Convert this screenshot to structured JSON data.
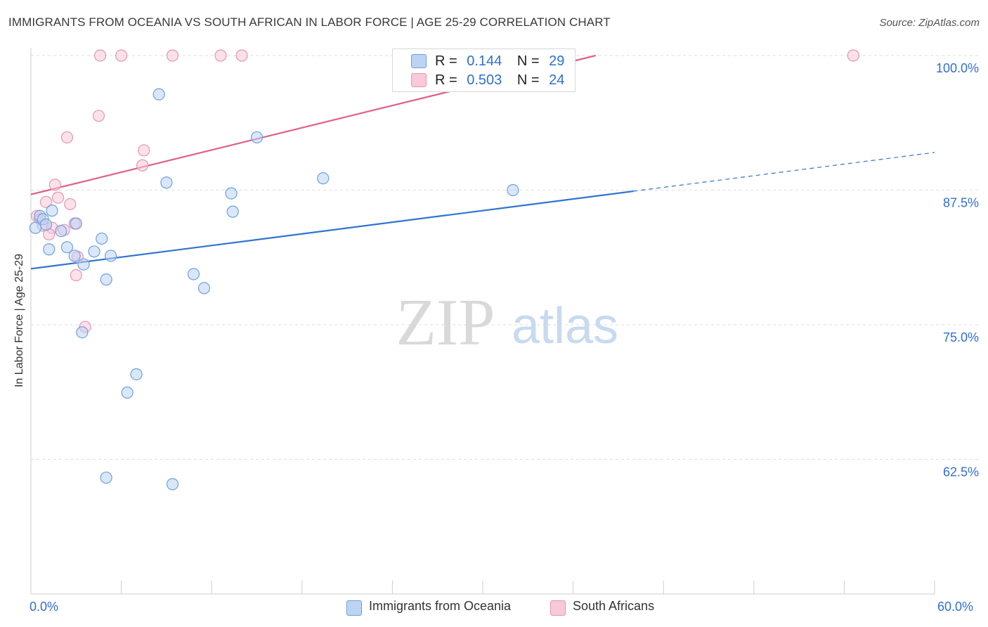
{
  "chart_data": {
    "type": "scatter",
    "title": "IMMIGRANTS FROM OCEANIA VS SOUTH AFRICAN IN LABOR FORCE | AGE 25-29 CORRELATION CHART",
    "source": "Source: ZipAtlas.com",
    "ylabel": "In Labor Force | Age 25-29",
    "xlim": [
      0,
      60
    ],
    "ylim": [
      50,
      101
    ],
    "y_ticks": [
      {
        "value": 100,
        "label": "100.0%"
      },
      {
        "value": 87.5,
        "label": "87.5%"
      },
      {
        "value": 75,
        "label": "75.0%"
      },
      {
        "value": 62.5,
        "label": "62.5%"
      }
    ],
    "x_tick_labels": {
      "min": "0.0%",
      "max": "60.0%"
    },
    "watermark": {
      "zip": "ZIP",
      "atlas": "atlas"
    },
    "series": [
      {
        "name": "Immigrants from Oceania",
        "color": "#6ea0e0",
        "fill": "#bcd3f3",
        "line_color": "#2f74d0",
        "R": "0.144",
        "N": "29",
        "trend": {
          "x0": 0,
          "y0": 80.2,
          "x1": 40,
          "y1": 87.4,
          "dash_to_x": 60,
          "dash_to_y": 91.0
        },
        "points": [
          [
            0.3,
            84.0
          ],
          [
            0.6,
            85.1
          ],
          [
            0.8,
            84.8
          ],
          [
            1.2,
            82.0
          ],
          [
            1.4,
            85.6
          ],
          [
            1.0,
            84.3
          ],
          [
            2.0,
            83.7
          ],
          [
            2.4,
            82.2
          ],
          [
            2.9,
            81.4
          ],
          [
            3.5,
            80.6
          ],
          [
            3.4,
            74.3
          ],
          [
            4.2,
            81.8
          ],
          [
            4.7,
            83.0
          ],
          [
            5.0,
            79.2
          ],
          [
            5.3,
            81.4
          ],
          [
            5.0,
            60.8
          ],
          [
            6.4,
            68.7
          ],
          [
            7.0,
            70.4
          ],
          [
            8.5,
            96.4
          ],
          [
            9.0,
            88.2
          ],
          [
            9.4,
            60.2
          ],
          [
            10.8,
            79.7
          ],
          [
            11.5,
            78.4
          ],
          [
            13.4,
            85.5
          ],
          [
            13.3,
            87.2
          ],
          [
            15.0,
            92.4
          ],
          [
            19.4,
            88.6
          ],
          [
            32.0,
            87.5
          ],
          [
            3.0,
            84.4
          ]
        ]
      },
      {
        "name": "South Africans",
        "color": "#e895b0",
        "fill": "#f8c9d8",
        "line_color": "#e0608a",
        "R": "0.503",
        "N": "24",
        "trend": {
          "x0": 0,
          "y0": 87.1,
          "x1": 37.5,
          "y1": 100
        }
      }
    ]
  },
  "south_africans_points": [
    [
      0.4,
      85.1
    ],
    [
      0.8,
      84.2
    ],
    [
      1.0,
      86.4
    ],
    [
      1.4,
      84.0
    ],
    [
      1.8,
      86.8
    ],
    [
      1.6,
      88.0
    ],
    [
      2.2,
      83.8
    ],
    [
      2.6,
      86.2
    ],
    [
      2.9,
      84.4
    ],
    [
      3.0,
      79.6
    ],
    [
      3.1,
      81.3
    ],
    [
      3.6,
      74.8
    ],
    [
      4.5,
      94.4
    ],
    [
      2.4,
      92.4
    ],
    [
      7.5,
      91.2
    ],
    [
      7.4,
      89.8
    ],
    [
      1.2,
      83.4
    ],
    [
      4.6,
      100
    ],
    [
      6.0,
      100
    ],
    [
      9.4,
      100
    ],
    [
      12.6,
      100
    ],
    [
      14.0,
      100
    ],
    [
      54.6,
      100
    ],
    [
      0.6,
      84.8
    ]
  ],
  "legend": {
    "r_label": "R =",
    "n_label": "N ="
  }
}
